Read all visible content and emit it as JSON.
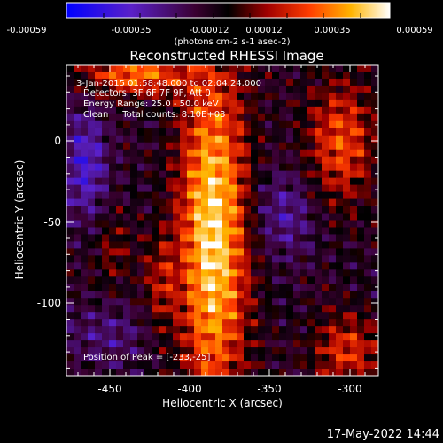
{
  "chart_data": {
    "type": "heatmap",
    "title": "Reconstructed RHESSI Image",
    "xlabel": "Heliocentric X (arcsec)",
    "ylabel": "Heliocentric Y (arcsec)",
    "x_ticks": [
      "-450",
      "-400",
      "-350",
      "-300"
    ],
    "y_ticks": [
      "0",
      "-50",
      "-100"
    ],
    "xlim": [
      -475,
      -280
    ],
    "ylim": [
      -148,
      34
    ],
    "colorbar": {
      "range": [
        -0.00059,
        0.00059
      ],
      "tick_labels": [
        "-0.00059",
        "-0.00035",
        "-0.00012",
        "0.00012",
        "0.00035",
        "0.00059"
      ],
      "units_label": "(photons cm-2 s-1 asec-2)",
      "colormap": "blue-purple-black-red-orange-yellow-white"
    },
    "annotations": [
      "3-Jan-2015 01:58:48.000 to 02:04:24.000",
      "Detectors: 3F 6F 7F 9F, Att 0",
      "Energy Range: 25.0 - 50.0 keV",
      "Clean     Total counts: 8.10E+03"
    ],
    "peak_label": "Position of Peak = [-233,-25]",
    "timestamp": "17-May-2022 14:44"
  }
}
